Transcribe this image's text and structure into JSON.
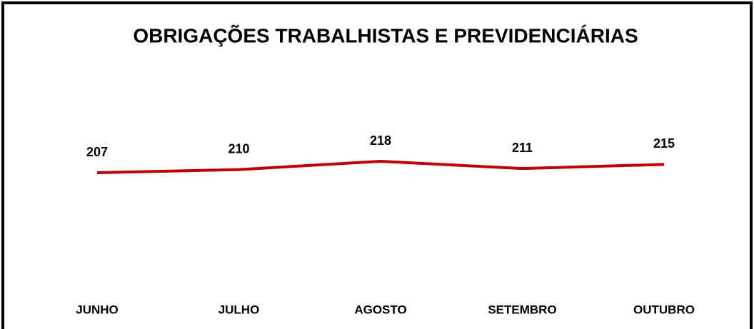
{
  "chart_data": {
    "type": "line",
    "title": "OBRIGAÇÕES TRABALHISTAS E PREVIDENCIÁRIAS",
    "categories": [
      "JUNHO",
      "JULHO",
      "AGOSTO",
      "SETEMBRO",
      "OUTUBRO"
    ],
    "series": [
      {
        "color": "#c00000",
        "values": [
          207,
          210,
          218,
          211,
          215
        ]
      }
    ]
  }
}
